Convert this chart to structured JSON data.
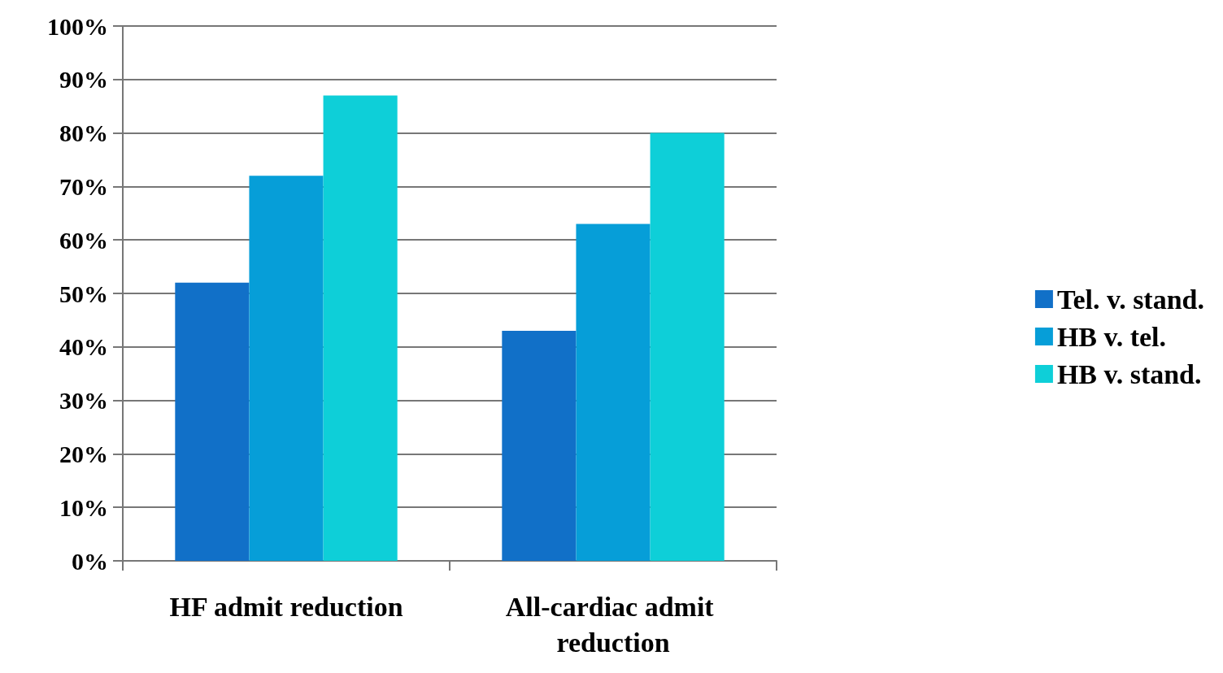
{
  "chart_data": {
    "type": "bar",
    "categories": [
      "HF admit reduction",
      "All-cardiac admit reduction"
    ],
    "series": [
      {
        "name": "Tel. v. stand.",
        "color": "#1170c8",
        "values": [
          52,
          43
        ]
      },
      {
        "name": "HB v. tel.",
        "color": "#069ed8",
        "values": [
          72,
          63
        ]
      },
      {
        "name": "HB v. stand.",
        "color": "#0ecfd8",
        "values": [
          87,
          80
        ]
      }
    ],
    "ylim": [
      0,
      100
    ],
    "yticks": [
      {
        "value": 0,
        "label": "0%"
      },
      {
        "value": 10,
        "label": "10%"
      },
      {
        "value": 20,
        "label": "20%"
      },
      {
        "value": 30,
        "label": "30%"
      },
      {
        "value": 40,
        "label": "40%"
      },
      {
        "value": 50,
        "label": "50%"
      },
      {
        "value": 60,
        "label": "60%"
      },
      {
        "value": 70,
        "label": "70%"
      },
      {
        "value": 80,
        "label": "80%"
      },
      {
        "value": 90,
        "label": "90%"
      },
      {
        "value": 100,
        "label": "100%"
      }
    ],
    "grid": "y",
    "legend": "right"
  }
}
